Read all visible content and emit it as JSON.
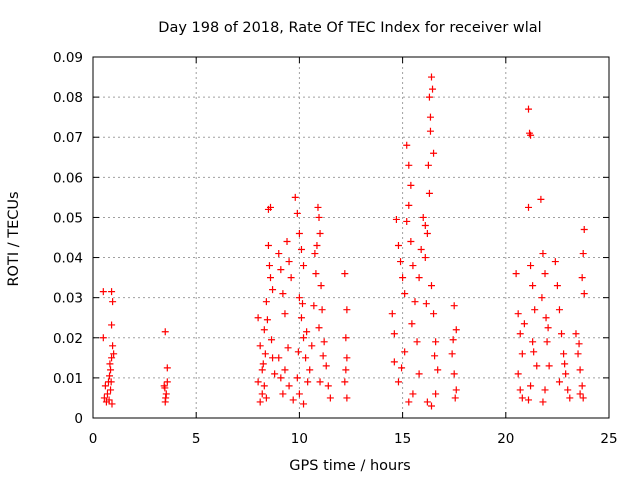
{
  "chart_data": {
    "type": "scatter",
    "title": "Day 198 of 2018, Rate Of TEC Index for receiver wlal",
    "xlabel": "GPS time / hours",
    "ylabel": "ROTI / TECUs",
    "xlim": [
      0,
      25
    ],
    "ylim": [
      0,
      0.09
    ],
    "xticks": [
      "0",
      "5",
      "10",
      "15",
      "20",
      "25"
    ],
    "yticks": [
      "0",
      "0.01",
      "0.02",
      "0.03",
      "0.04",
      "0.05",
      "0.06",
      "0.07",
      "0.08",
      "0.09"
    ],
    "grid": true,
    "marker": "plus",
    "color": "#ff0000",
    "series": [
      {
        "name": "ROTI",
        "points": [
          [
            0.5,
            0.0315
          ],
          [
            0.6,
            0.008
          ],
          [
            0.55,
            0.005
          ],
          [
            0.7,
            0.006
          ],
          [
            0.65,
            0.004
          ],
          [
            0.75,
            0.009
          ],
          [
            0.85,
            0.012
          ],
          [
            0.9,
            0.015
          ],
          [
            0.95,
            0.018
          ],
          [
            0.85,
            0.007
          ],
          [
            0.9,
            0.0315
          ],
          [
            0.95,
            0.029
          ],
          [
            0.9,
            0.0232
          ],
          [
            1.0,
            0.016
          ],
          [
            0.8,
            0.0105
          ],
          [
            0.88,
            0.009
          ],
          [
            0.78,
            0.0045
          ],
          [
            0.92,
            0.0035
          ],
          [
            0.82,
            0.0135
          ],
          [
            0.5,
            0.02
          ],
          [
            3.5,
            0.0215
          ],
          [
            3.6,
            0.0125
          ],
          [
            3.45,
            0.008
          ],
          [
            3.55,
            0.006
          ],
          [
            3.5,
            0.004
          ],
          [
            3.6,
            0.009
          ],
          [
            3.52,
            0.005
          ],
          [
            3.48,
            0.0075
          ],
          [
            8.0,
            0.025
          ],
          [
            8.1,
            0.018
          ],
          [
            8.2,
            0.012
          ],
          [
            8.3,
            0.008
          ],
          [
            8.4,
            0.005
          ],
          [
            8.5,
            0.052
          ],
          [
            8.6,
            0.0525
          ],
          [
            8.5,
            0.043
          ],
          [
            8.55,
            0.038
          ],
          [
            8.6,
            0.035
          ],
          [
            8.7,
            0.032
          ],
          [
            8.4,
            0.029
          ],
          [
            8.3,
            0.022
          ],
          [
            8.2,
            0.006
          ],
          [
            8.1,
            0.004
          ],
          [
            8.0,
            0.009
          ],
          [
            8.7,
            0.015
          ],
          [
            8.8,
            0.011
          ],
          [
            8.45,
            0.0245
          ],
          [
            8.35,
            0.016
          ],
          [
            8.25,
            0.0135
          ],
          [
            8.65,
            0.0195
          ],
          [
            9.0,
            0.041
          ],
          [
            9.1,
            0.037
          ],
          [
            9.2,
            0.031
          ],
          [
            9.3,
            0.026
          ],
          [
            9.0,
            0.015
          ],
          [
            9.1,
            0.01
          ],
          [
            9.2,
            0.006
          ],
          [
            9.4,
            0.044
          ],
          [
            9.5,
            0.039
          ],
          [
            9.6,
            0.035
          ],
          [
            9.3,
            0.012
          ],
          [
            9.5,
            0.008
          ],
          [
            9.7,
            0.0045
          ],
          [
            9.45,
            0.0175
          ],
          [
            9.8,
            0.055
          ],
          [
            9.9,
            0.051
          ],
          [
            10.0,
            0.046
          ],
          [
            10.1,
            0.042
          ],
          [
            10.2,
            0.038
          ],
          [
            10.0,
            0.03
          ],
          [
            10.1,
            0.025
          ],
          [
            10.2,
            0.02
          ],
          [
            10.3,
            0.015
          ],
          [
            9.9,
            0.01
          ],
          [
            10.0,
            0.006
          ],
          [
            10.4,
            0.009
          ],
          [
            10.5,
            0.012
          ],
          [
            10.2,
            0.0035
          ],
          [
            10.15,
            0.0285
          ],
          [
            10.35,
            0.0215
          ],
          [
            9.95,
            0.0165
          ],
          [
            10.6,
            0.018
          ],
          [
            10.7,
            0.028
          ],
          [
            10.8,
            0.036
          ],
          [
            10.9,
            0.0525
          ],
          [
            10.95,
            0.05
          ],
          [
            11.0,
            0.046
          ],
          [
            10.85,
            0.043
          ],
          [
            11.05,
            0.033
          ],
          [
            11.1,
            0.027
          ],
          [
            11.2,
            0.019
          ],
          [
            11.3,
            0.013
          ],
          [
            11.4,
            0.008
          ],
          [
            11.5,
            0.005
          ],
          [
            11.0,
            0.009
          ],
          [
            10.75,
            0.041
          ],
          [
            10.95,
            0.0225
          ],
          [
            11.15,
            0.0155
          ],
          [
            12.2,
            0.036
          ],
          [
            12.3,
            0.027
          ],
          [
            12.25,
            0.02
          ],
          [
            12.3,
            0.015
          ],
          [
            12.2,
            0.009
          ],
          [
            12.3,
            0.005
          ],
          [
            12.25,
            0.012
          ],
          [
            14.5,
            0.026
          ],
          [
            14.6,
            0.021
          ],
          [
            14.7,
            0.0495
          ],
          [
            14.8,
            0.043
          ],
          [
            14.9,
            0.039
          ],
          [
            15.0,
            0.035
          ],
          [
            15.1,
            0.031
          ],
          [
            15.2,
            0.068
          ],
          [
            15.3,
            0.063
          ],
          [
            15.4,
            0.058
          ],
          [
            15.3,
            0.053
          ],
          [
            15.2,
            0.049
          ],
          [
            15.4,
            0.044
          ],
          [
            15.5,
            0.038
          ],
          [
            15.6,
            0.029
          ],
          [
            15.7,
            0.019
          ],
          [
            15.8,
            0.011
          ],
          [
            15.5,
            0.006
          ],
          [
            15.3,
            0.004
          ],
          [
            14.8,
            0.009
          ],
          [
            14.6,
            0.014
          ],
          [
            15.1,
            0.0165
          ],
          [
            15.45,
            0.0235
          ],
          [
            14.95,
            0.0125
          ],
          [
            15.8,
            0.035
          ],
          [
            15.9,
            0.042
          ],
          [
            16.0,
            0.05
          ],
          [
            16.1,
            0.048
          ],
          [
            16.2,
            0.046
          ],
          [
            16.3,
            0.08
          ],
          [
            16.4,
            0.085
          ],
          [
            16.45,
            0.082
          ],
          [
            16.35,
            0.075
          ],
          [
            16.5,
            0.066
          ],
          [
            16.25,
            0.063
          ],
          [
            16.3,
            0.056
          ],
          [
            16.1,
            0.04
          ],
          [
            16.4,
            0.033
          ],
          [
            16.5,
            0.026
          ],
          [
            16.6,
            0.019
          ],
          [
            16.7,
            0.012
          ],
          [
            16.6,
            0.006
          ],
          [
            16.2,
            0.004
          ],
          [
            16.4,
            0.003
          ],
          [
            16.35,
            0.0715
          ],
          [
            16.15,
            0.0285
          ],
          [
            16.55,
            0.0155
          ],
          [
            17.5,
            0.028
          ],
          [
            17.6,
            0.022
          ],
          [
            17.4,
            0.016
          ],
          [
            17.5,
            0.011
          ],
          [
            17.6,
            0.007
          ],
          [
            17.55,
            0.005
          ],
          [
            17.45,
            0.0195
          ],
          [
            20.5,
            0.036
          ],
          [
            20.6,
            0.026
          ],
          [
            20.7,
            0.021
          ],
          [
            20.8,
            0.016
          ],
          [
            20.6,
            0.011
          ],
          [
            20.7,
            0.007
          ],
          [
            20.8,
            0.005
          ],
          [
            21.1,
            0.077
          ],
          [
            21.15,
            0.071
          ],
          [
            21.2,
            0.0705
          ],
          [
            21.1,
            0.0525
          ],
          [
            21.2,
            0.038
          ],
          [
            21.3,
            0.033
          ],
          [
            21.4,
            0.027
          ],
          [
            21.3,
            0.019
          ],
          [
            21.5,
            0.013
          ],
          [
            21.2,
            0.008
          ],
          [
            21.1,
            0.0045
          ],
          [
            20.9,
            0.0235
          ],
          [
            21.35,
            0.0165
          ],
          [
            21.7,
            0.0545
          ],
          [
            21.8,
            0.041
          ],
          [
            21.9,
            0.036
          ],
          [
            21.75,
            0.03
          ],
          [
            21.95,
            0.025
          ],
          [
            22.0,
            0.019
          ],
          [
            22.1,
            0.013
          ],
          [
            21.9,
            0.007
          ],
          [
            21.8,
            0.004
          ],
          [
            22.05,
            0.0225
          ],
          [
            22.4,
            0.039
          ],
          [
            22.5,
            0.033
          ],
          [
            22.6,
            0.027
          ],
          [
            22.7,
            0.021
          ],
          [
            22.8,
            0.016
          ],
          [
            22.9,
            0.011
          ],
          [
            23.0,
            0.007
          ],
          [
            23.1,
            0.005
          ],
          [
            22.6,
            0.009
          ],
          [
            22.85,
            0.0135
          ],
          [
            23.4,
            0.021
          ],
          [
            23.5,
            0.016
          ],
          [
            23.6,
            0.012
          ],
          [
            23.7,
            0.008
          ],
          [
            23.8,
            0.047
          ],
          [
            23.75,
            0.041
          ],
          [
            23.7,
            0.035
          ],
          [
            23.8,
            0.031
          ],
          [
            23.75,
            0.005
          ],
          [
            23.6,
            0.006
          ],
          [
            23.55,
            0.0185
          ]
        ]
      }
    ]
  }
}
